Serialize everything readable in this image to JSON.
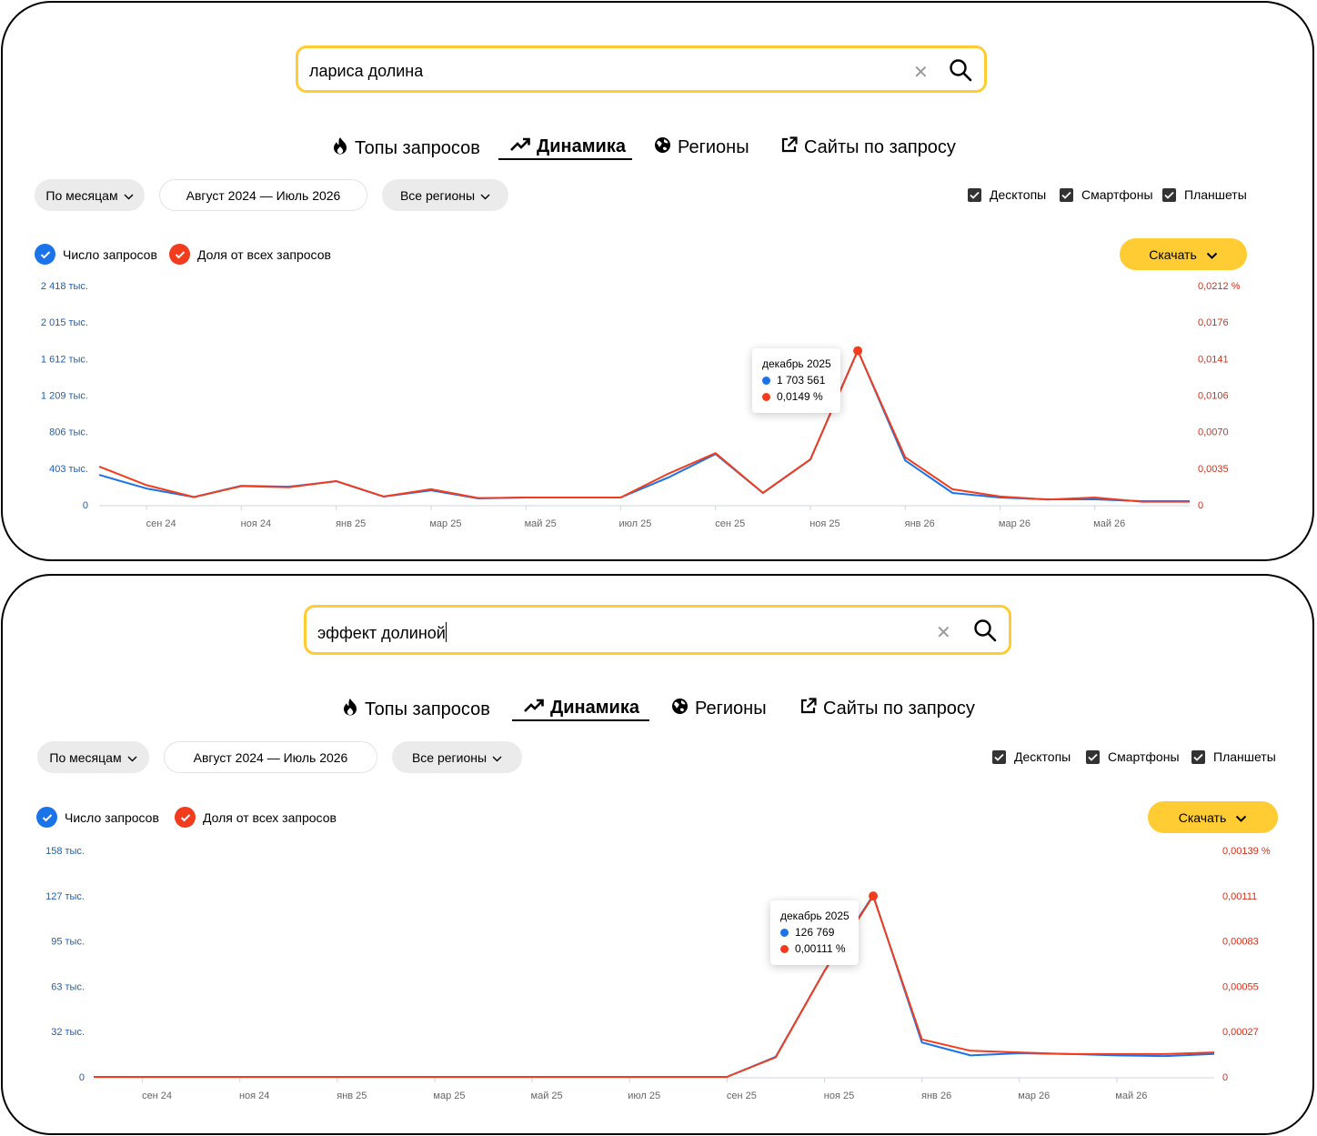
{
  "panels": [
    {
      "query": "лариса долина",
      "tabs": [
        "Топы запросов",
        "Динамика",
        "Регионы",
        "Сайты по запросу"
      ],
      "active_tab": "Динамика",
      "period_button": "По месяцам",
      "date_range": "Август 2024 — Июль 2026",
      "regions_button": "Все регионы",
      "devices": [
        "Десктопы",
        "Смартфоны",
        "Планшеты"
      ],
      "legend": {
        "count": "Число запросов",
        "share": "Доля от всех запросов"
      },
      "download_label": "Скачать",
      "tooltip": {
        "month": "декабрь 2025",
        "count": "1 703 561",
        "share": "0,0149 %"
      },
      "chart_data": {
        "type": "line",
        "x": [
          "авг 24",
          "сен 24",
          "окт 24",
          "ноя 24",
          "дек 24",
          "янв 25",
          "фев 25",
          "мар 25",
          "апр 25",
          "май 25",
          "июн 25",
          "июл 25",
          "авг 25",
          "сен 25",
          "окт 25",
          "ноя 25",
          "дек 25",
          "янв 26",
          "фев 26",
          "мар 26",
          "апр 26",
          "май 26",
          "июн 26",
          "июл 26"
        ],
        "x_tick_labels": [
          "сен 24",
          "ноя 24",
          "янв 25",
          "мар 25",
          "май 25",
          "июл 25",
          "сен 25",
          "ноя 25",
          "янв 26",
          "мар 26",
          "май 26"
        ],
        "y_left_ticks": [
          "2 418 тыс.",
          "2 015 тыс.",
          "1 612 тыс.",
          "1 209 тыс.",
          "806 тыс.",
          "403 тыс.",
          "0"
        ],
        "y_right_ticks": [
          "0,0212 %",
          "0,0176",
          "0,0141",
          "0,0106",
          "0,0070",
          "0,0035",
          "0"
        ],
        "y_left_range": [
          0,
          2418
        ],
        "y_right_range": [
          0,
          0.0212
        ],
        "series": [
          {
            "name": "Число запросов",
            "unit": "тыс.",
            "color": "#1a73e8",
            "values": [
              330,
              180,
              85,
              210,
              200,
              260,
              90,
              160,
              70,
              80,
              80,
              80,
              300,
              560,
              130,
              500,
              1704,
              490,
              130,
              80,
              60,
              60,
              40,
              40
            ]
          },
          {
            "name": "Доля от всех запросов",
            "unit": "%",
            "color": "#f33c1d",
            "values": [
              0.0037,
              0.0019,
              0.00075,
              0.0018,
              0.0017,
              0.0023,
              0.0008,
              0.0015,
              0.00065,
              0.0007,
              0.0007,
              0.0007,
              0.003,
              0.005,
              0.00115,
              0.0044,
              0.0149,
              0.0046,
              0.0015,
              0.0008,
              0.0005,
              0.0007,
              0.0003,
              0.0003
            ]
          }
        ]
      }
    },
    {
      "query": "эффект долиной",
      "tabs": [
        "Топы запросов",
        "Динамика",
        "Регионы",
        "Сайты по запросу"
      ],
      "active_tab": "Динамика",
      "period_button": "По месяцам",
      "date_range": "Август 2024 — Июль 2026",
      "regions_button": "Все регионы",
      "devices": [
        "Десктопы",
        "Смартфоны",
        "Планшеты"
      ],
      "legend": {
        "count": "Число запросов",
        "share": "Доля от всех запросов"
      },
      "download_label": "Скачать",
      "tooltip": {
        "month": "декабрь 2025",
        "count": "126 769",
        "share": "0,00111 %"
      },
      "chart_data": {
        "type": "line",
        "x": [
          "авг 24",
          "сен 24",
          "окт 24",
          "ноя 24",
          "дек 24",
          "янв 25",
          "фев 25",
          "мар 25",
          "апр 25",
          "май 25",
          "июн 25",
          "июл 25",
          "авг 25",
          "сен 25",
          "окт 25",
          "ноя 25",
          "дек 25",
          "янв 26",
          "фев 26",
          "мар 26",
          "апр 26",
          "май 26",
          "июн 26",
          "июл 26"
        ],
        "x_tick_labels": [
          "сен 24",
          "ноя 24",
          "янв 25",
          "мар 25",
          "май 25",
          "июл 25",
          "сен 25",
          "ноя 25",
          "янв 26",
          "мар 26",
          "май 26"
        ],
        "y_left_ticks": [
          "158 тыс.",
          "127 тыс.",
          "95 тыс.",
          "63 тыс.",
          "32 тыс.",
          "0"
        ],
        "y_right_ticks": [
          "0,00139 %",
          "0,00111",
          "0,00083",
          "0,00055",
          "0,00027",
          "0"
        ],
        "y_left_range": [
          0,
          158
        ],
        "y_right_range": [
          0,
          0.00139
        ],
        "series": [
          {
            "name": "Число запросов",
            "unit": "тыс.",
            "color": "#1a73e8",
            "values": [
              0,
              0,
              0,
              0,
              0,
              0,
              0,
              0,
              0,
              0,
              0,
              0,
              0,
              0,
              14,
              74,
              126.8,
              24,
              15,
              16.5,
              16,
              15,
              14.5,
              16
            ]
          },
          {
            "name": "Доля от всех запросов",
            "unit": "%",
            "color": "#f33c1d",
            "values": [
              0,
              0,
              0,
              0,
              0,
              0,
              0,
              0,
              0,
              0,
              0,
              0,
              0,
              0,
              0.00012,
              0.00065,
              0.00111,
              0.00023,
              0.00016,
              0.00015,
              0.00014,
              0.00014,
              0.00014,
              0.00015
            ]
          }
        ]
      }
    }
  ]
}
